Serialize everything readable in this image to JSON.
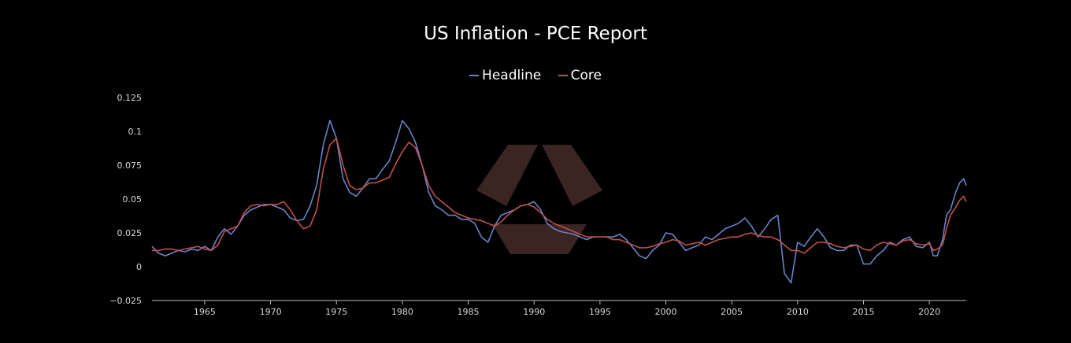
{
  "colors": {
    "headline": "#6b82c6",
    "core": "#c0504d",
    "axis": "#bbbbbb",
    "background": "#000000",
    "watermark": "#3a2523"
  },
  "icons": {
    "watermark": "hexagon-logo-icon"
  },
  "chart_data": {
    "type": "line",
    "title": "US Inflation - PCE Report",
    "xlabel": "",
    "ylabel": "",
    "xlim": [
      1961.0,
      2022.8
    ],
    "ylim": [
      -0.025,
      0.125
    ],
    "grid": false,
    "legend_position": "top-center",
    "x_ticks": [
      1965,
      1970,
      1975,
      1980,
      1985,
      1990,
      1995,
      2000,
      2005,
      2010,
      2015,
      2020
    ],
    "y_ticks": [
      -0.025,
      0,
      0.025,
      0.05,
      0.075,
      0.1,
      0.125
    ],
    "y_tick_labels": [
      "−0.025",
      "0",
      "0.025",
      "0.05",
      "0.075",
      "0.1",
      "0.125"
    ],
    "series": [
      {
        "name": "Headline",
        "x": [
          1961.0,
          1961.5,
          1962.0,
          1962.5,
          1963.0,
          1963.5,
          1964.0,
          1964.5,
          1965.0,
          1965.5,
          1966.0,
          1966.5,
          1967.0,
          1967.5,
          1968.0,
          1968.5,
          1969.0,
          1969.5,
          1970.0,
          1970.5,
          1971.0,
          1971.5,
          1972.0,
          1972.5,
          1973.0,
          1973.5,
          1974.0,
          1974.5,
          1975.0,
          1975.5,
          1976.0,
          1976.5,
          1977.0,
          1977.5,
          1978.0,
          1978.5,
          1979.0,
          1979.5,
          1980.0,
          1980.5,
          1981.0,
          1981.5,
          1982.0,
          1982.5,
          1983.0,
          1983.5,
          1984.0,
          1984.5,
          1985.0,
          1985.5,
          1986.0,
          1986.5,
          1987.0,
          1987.5,
          1988.0,
          1988.5,
          1989.0,
          1989.5,
          1990.0,
          1990.5,
          1991.0,
          1991.5,
          1992.0,
          1992.5,
          1993.0,
          1993.5,
          1994.0,
          1994.5,
          1995.0,
          1995.5,
          1996.0,
          1996.5,
          1997.0,
          1997.5,
          1998.0,
          1998.5,
          1999.0,
          1999.5,
          2000.0,
          2000.5,
          2001.0,
          2001.5,
          2002.0,
          2002.5,
          2003.0,
          2003.5,
          2004.0,
          2004.5,
          2005.0,
          2005.5,
          2006.0,
          2006.5,
          2007.0,
          2007.5,
          2008.0,
          2008.5,
          2009.0,
          2009.5,
          2010.0,
          2010.5,
          2011.0,
          2011.5,
          2012.0,
          2012.5,
          2013.0,
          2013.5,
          2014.0,
          2014.5,
          2015.0,
          2015.5,
          2016.0,
          2016.5,
          2017.0,
          2017.5,
          2018.0,
          2018.5,
          2019.0,
          2019.5,
          2020.0,
          2020.3,
          2020.6,
          2021.0,
          2021.3,
          2021.6,
          2022.0,
          2022.3,
          2022.6,
          2022.8
        ],
        "values": [
          0.015,
          0.01,
          0.008,
          0.01,
          0.012,
          0.011,
          0.013,
          0.012,
          0.015,
          0.012,
          0.022,
          0.028,
          0.024,
          0.03,
          0.038,
          0.042,
          0.044,
          0.046,
          0.046,
          0.044,
          0.042,
          0.036,
          0.034,
          0.035,
          0.045,
          0.06,
          0.09,
          0.108,
          0.095,
          0.065,
          0.055,
          0.052,
          0.058,
          0.065,
          0.065,
          0.072,
          0.078,
          0.092,
          0.108,
          0.102,
          0.092,
          0.075,
          0.055,
          0.045,
          0.042,
          0.038,
          0.038,
          0.035,
          0.035,
          0.032,
          0.022,
          0.018,
          0.03,
          0.038,
          0.04,
          0.042,
          0.045,
          0.046,
          0.048,
          0.042,
          0.032,
          0.028,
          0.026,
          0.025,
          0.024,
          0.022,
          0.02,
          0.022,
          0.022,
          0.022,
          0.022,
          0.024,
          0.02,
          0.014,
          0.008,
          0.006,
          0.012,
          0.016,
          0.025,
          0.024,
          0.018,
          0.012,
          0.014,
          0.016,
          0.022,
          0.02,
          0.024,
          0.028,
          0.03,
          0.032,
          0.036,
          0.03,
          0.022,
          0.028,
          0.035,
          0.038,
          -0.005,
          -0.012,
          0.018,
          0.015,
          0.022,
          0.028,
          0.022,
          0.014,
          0.012,
          0.012,
          0.016,
          0.016,
          0.002,
          0.002,
          0.008,
          0.012,
          0.018,
          0.016,
          0.02,
          0.022,
          0.015,
          0.014,
          0.018,
          0.008,
          0.008,
          0.02,
          0.038,
          0.042,
          0.055,
          0.062,
          0.065,
          0.06
        ]
      },
      {
        "name": "Core",
        "x": [
          1961.0,
          1961.5,
          1962.0,
          1962.5,
          1963.0,
          1963.5,
          1964.0,
          1964.5,
          1965.0,
          1965.5,
          1966.0,
          1966.5,
          1967.0,
          1967.5,
          1968.0,
          1968.5,
          1969.0,
          1969.5,
          1970.0,
          1970.5,
          1971.0,
          1971.5,
          1972.0,
          1972.5,
          1973.0,
          1973.5,
          1974.0,
          1974.5,
          1975.0,
          1975.5,
          1976.0,
          1976.5,
          1977.0,
          1977.5,
          1978.0,
          1978.5,
          1979.0,
          1979.5,
          1980.0,
          1980.5,
          1981.0,
          1981.5,
          1982.0,
          1982.5,
          1983.0,
          1983.5,
          1984.0,
          1984.5,
          1985.0,
          1985.5,
          1986.0,
          1986.5,
          1987.0,
          1987.5,
          1988.0,
          1988.5,
          1989.0,
          1989.5,
          1990.0,
          1990.5,
          1991.0,
          1991.5,
          1992.0,
          1992.5,
          1993.0,
          1993.5,
          1994.0,
          1994.5,
          1995.0,
          1995.5,
          1996.0,
          1996.5,
          1997.0,
          1997.5,
          1998.0,
          1998.5,
          1999.0,
          1999.5,
          2000.0,
          2000.5,
          2001.0,
          2001.5,
          2002.0,
          2002.5,
          2003.0,
          2003.5,
          2004.0,
          2004.5,
          2005.0,
          2005.5,
          2006.0,
          2006.5,
          2007.0,
          2007.5,
          2008.0,
          2008.5,
          2009.0,
          2009.5,
          2010.0,
          2010.5,
          2011.0,
          2011.5,
          2012.0,
          2012.5,
          2013.0,
          2013.5,
          2014.0,
          2014.5,
          2015.0,
          2015.5,
          2016.0,
          2016.5,
          2017.0,
          2017.5,
          2018.0,
          2018.5,
          2019.0,
          2019.5,
          2020.0,
          2020.3,
          2020.6,
          2021.0,
          2021.3,
          2021.6,
          2022.0,
          2022.3,
          2022.6,
          2022.8
        ],
        "values": [
          0.012,
          0.012,
          0.013,
          0.013,
          0.012,
          0.013,
          0.014,
          0.015,
          0.013,
          0.012,
          0.016,
          0.026,
          0.028,
          0.03,
          0.04,
          0.045,
          0.046,
          0.045,
          0.046,
          0.046,
          0.048,
          0.042,
          0.034,
          0.028,
          0.03,
          0.042,
          0.072,
          0.09,
          0.095,
          0.075,
          0.06,
          0.057,
          0.058,
          0.062,
          0.062,
          0.064,
          0.066,
          0.076,
          0.085,
          0.092,
          0.088,
          0.075,
          0.06,
          0.052,
          0.048,
          0.044,
          0.04,
          0.038,
          0.036,
          0.035,
          0.034,
          0.032,
          0.03,
          0.033,
          0.038,
          0.042,
          0.045,
          0.046,
          0.044,
          0.04,
          0.035,
          0.032,
          0.03,
          0.028,
          0.026,
          0.024,
          0.022,
          0.022,
          0.022,
          0.022,
          0.02,
          0.02,
          0.018,
          0.016,
          0.014,
          0.014,
          0.015,
          0.017,
          0.018,
          0.02,
          0.019,
          0.016,
          0.017,
          0.018,
          0.016,
          0.018,
          0.02,
          0.021,
          0.022,
          0.022,
          0.024,
          0.025,
          0.023,
          0.022,
          0.022,
          0.02,
          0.016,
          0.012,
          0.012,
          0.01,
          0.014,
          0.018,
          0.018,
          0.017,
          0.015,
          0.014,
          0.015,
          0.016,
          0.013,
          0.012,
          0.016,
          0.018,
          0.017,
          0.016,
          0.019,
          0.02,
          0.017,
          0.016,
          0.017,
          0.012,
          0.013,
          0.016,
          0.028,
          0.038,
          0.044,
          0.049,
          0.052,
          0.048
        ]
      }
    ]
  }
}
